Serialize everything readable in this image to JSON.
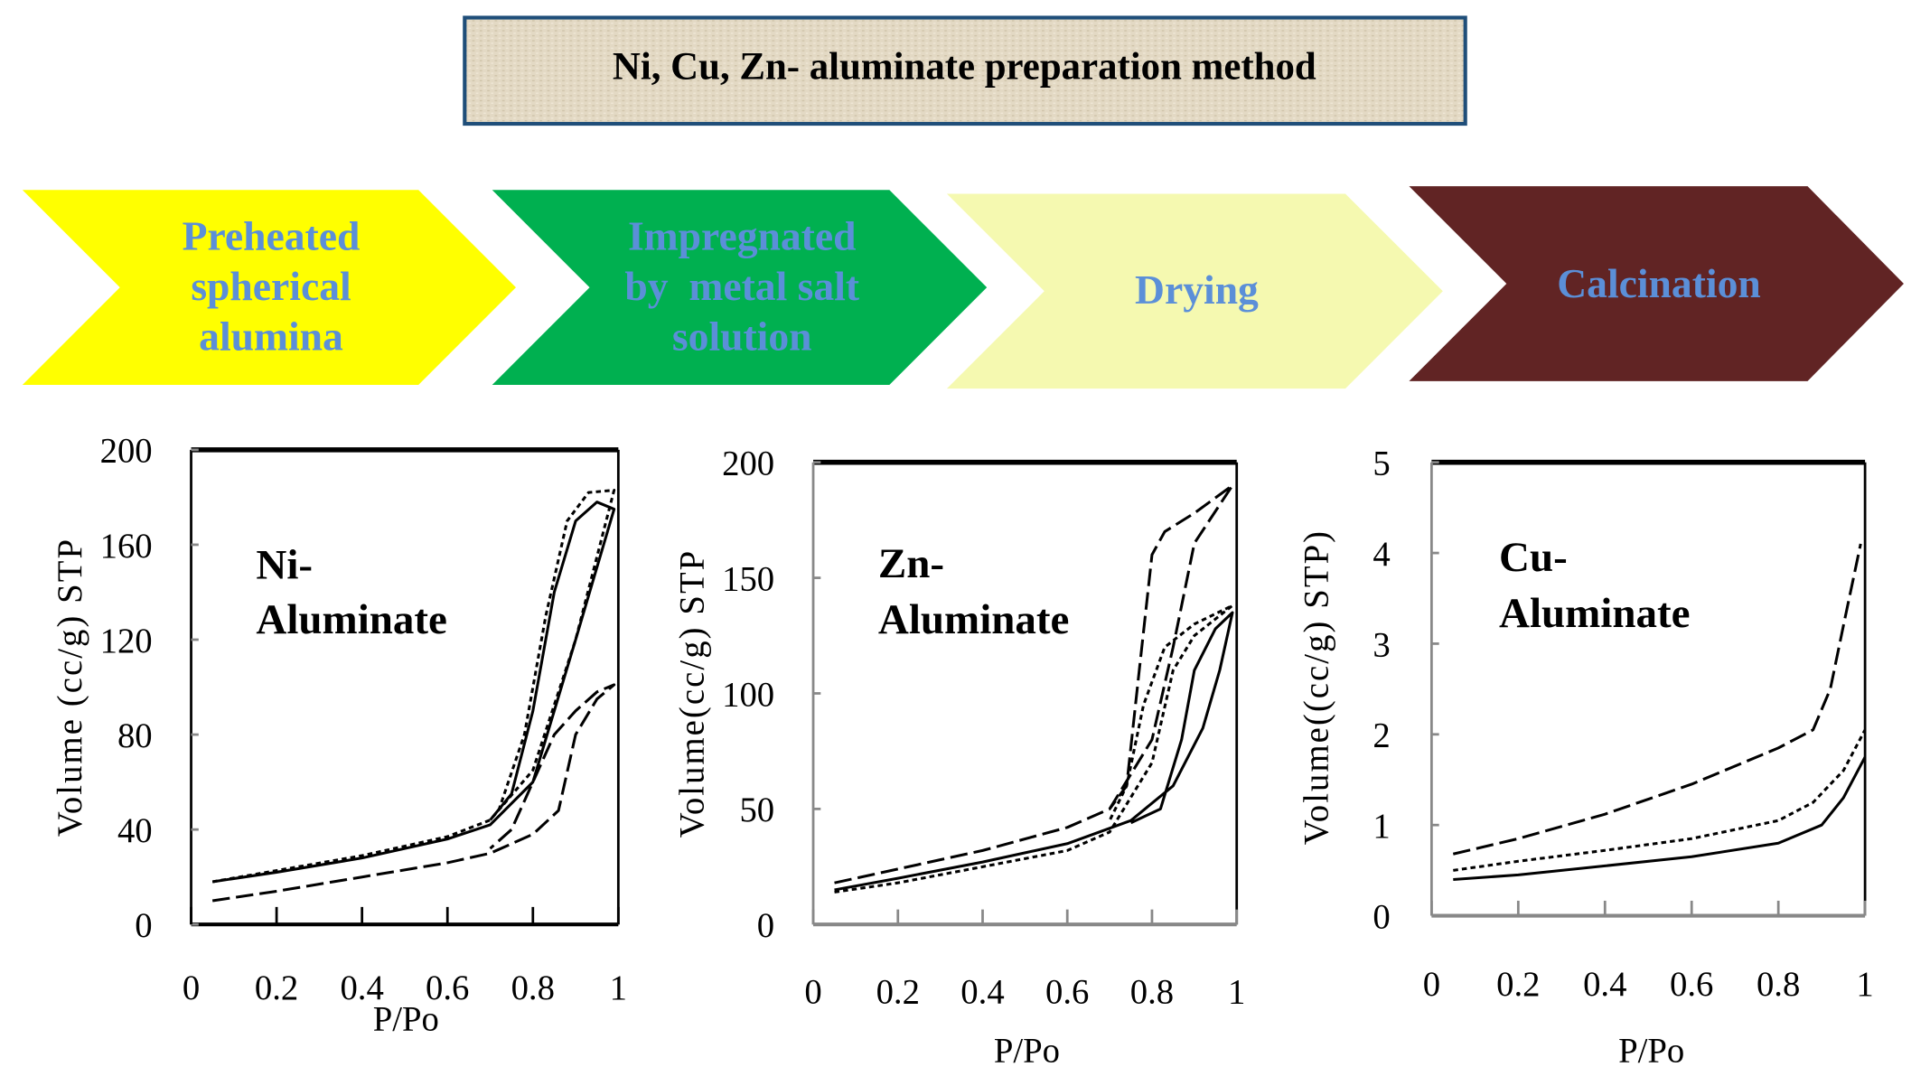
{
  "title": "Ni, Cu, Zn- aluminate preparation method",
  "steps": [
    {
      "lines": [
        "Preheated",
        "spherical",
        "alumina"
      ],
      "color": "#ffff00"
    },
    {
      "lines": [
        "Impregnated",
        "by  metal salt",
        "solution"
      ],
      "color": "#00b050"
    },
    {
      "lines": [
        "Drying"
      ],
      "color": "#f5f9b0"
    },
    {
      "lines": [
        "Calcination"
      ],
      "color": "#612424"
    }
  ],
  "step_text_color": "#5b8fd8",
  "chart_data": [
    {
      "type": "line",
      "annotation": [
        "Ni-",
        "Aluminate"
      ],
      "xlabel": "P/Po",
      "ylabel": "Volume (cc/g) STP",
      "xlim": [
        0,
        1
      ],
      "ylim": [
        0,
        200
      ],
      "xticks": [
        "0",
        "0.2",
        "0.4",
        "0.6",
        "0.8",
        "1"
      ],
      "yticks": [
        "0",
        "40",
        "80",
        "120",
        "160",
        "200"
      ],
      "series": [
        {
          "name": "solid",
          "style": "solid",
          "x": [
            0.05,
            0.2,
            0.4,
            0.6,
            0.7,
            0.8,
            0.9,
            0.99,
            0.95,
            0.9,
            0.85,
            0.8,
            0.75,
            0.7
          ],
          "y": [
            18,
            22,
            28,
            36,
            42,
            60,
            120,
            175,
            178,
            170,
            140,
            90,
            55,
            44
          ]
        },
        {
          "name": "short-dash",
          "style": "short",
          "x": [
            0.05,
            0.4,
            0.6,
            0.7,
            0.8,
            0.9,
            0.99,
            0.93,
            0.88,
            0.83,
            0.78,
            0.72
          ],
          "y": [
            18,
            29,
            37,
            44,
            65,
            120,
            183,
            182,
            170,
            130,
            80,
            48
          ]
        },
        {
          "name": "long-dash",
          "style": "long",
          "x": [
            0.05,
            0.2,
            0.4,
            0.6,
            0.7,
            0.8,
            0.86,
            0.9,
            0.95,
            0.99,
            0.95,
            0.9,
            0.85,
            0.8,
            0.75,
            0.7
          ],
          "y": [
            10,
            14,
            20,
            26,
            30,
            38,
            48,
            80,
            95,
            101,
            98,
            90,
            80,
            60,
            40,
            32
          ]
        }
      ]
    },
    {
      "type": "line",
      "annotation": [
        "Zn-",
        "Aluminate"
      ],
      "xlabel": "P/Po",
      "ylabel": "Volume(cc/g) STP",
      "xlim": [
        0,
        1
      ],
      "ylim": [
        0,
        200
      ],
      "xticks": [
        "0",
        "0.2",
        "0.4",
        "0.6",
        "0.8",
        "1"
      ],
      "yticks": [
        "0",
        "50",
        "100",
        "150",
        "200"
      ],
      "series": [
        {
          "name": "long-dash",
          "style": "long",
          "x": [
            0.05,
            0.2,
            0.4,
            0.6,
            0.7,
            0.8,
            0.85,
            0.9,
            0.99,
            0.9,
            0.83,
            0.8,
            0.77,
            0.74,
            0.7
          ],
          "y": [
            18,
            24,
            32,
            42,
            50,
            80,
            120,
            165,
            190,
            178,
            170,
            160,
            110,
            60,
            50
          ]
        },
        {
          "name": "short-dash",
          "style": "short",
          "x": [
            0.05,
            0.2,
            0.4,
            0.6,
            0.7,
            0.8,
            0.85,
            0.9,
            0.99,
            0.9,
            0.83,
            0.78,
            0.74,
            0.7
          ],
          "y": [
            14,
            18,
            25,
            32,
            40,
            70,
            110,
            125,
            138,
            130,
            120,
            95,
            60,
            45
          ]
        },
        {
          "name": "solid",
          "style": "solid",
          "x": [
            0.05,
            0.2,
            0.4,
            0.6,
            0.75,
            0.85,
            0.92,
            0.96,
            0.99,
            0.95,
            0.9,
            0.87,
            0.82,
            0.75
          ],
          "y": [
            15,
            20,
            27,
            35,
            45,
            60,
            85,
            110,
            135,
            128,
            110,
            80,
            50,
            44
          ]
        }
      ]
    },
    {
      "type": "line",
      "annotation": [
        "Cu-",
        "Aluminate"
      ],
      "xlabel": "P/Po",
      "ylabel": "Volume((cc/g) STP)",
      "xlim": [
        0,
        1
      ],
      "ylim": [
        0,
        5
      ],
      "xticks": [
        "0",
        "0.2",
        "0.4",
        "0.6",
        "0.8",
        "1"
      ],
      "yticks": [
        "0",
        "1",
        "2",
        "3",
        "4",
        "5"
      ],
      "series": [
        {
          "name": "long-dash",
          "style": "long",
          "x": [
            0.05,
            0.2,
            0.4,
            0.6,
            0.8,
            0.88,
            0.92,
            0.95,
            0.99
          ],
          "y": [
            0.68,
            0.85,
            1.12,
            1.45,
            1.85,
            2.05,
            2.5,
            3.2,
            4.1
          ]
        },
        {
          "name": "short-dash",
          "style": "short",
          "x": [
            0.05,
            0.2,
            0.4,
            0.6,
            0.8,
            0.88,
            0.95,
            1.0
          ],
          "y": [
            0.5,
            0.6,
            0.72,
            0.85,
            1.05,
            1.25,
            1.6,
            2.05
          ]
        },
        {
          "name": "solid",
          "style": "solid",
          "x": [
            0.05,
            0.2,
            0.4,
            0.6,
            0.8,
            0.9,
            0.95,
            1.0
          ],
          "y": [
            0.4,
            0.45,
            0.55,
            0.65,
            0.8,
            1.0,
            1.3,
            1.75
          ]
        }
      ]
    }
  ]
}
